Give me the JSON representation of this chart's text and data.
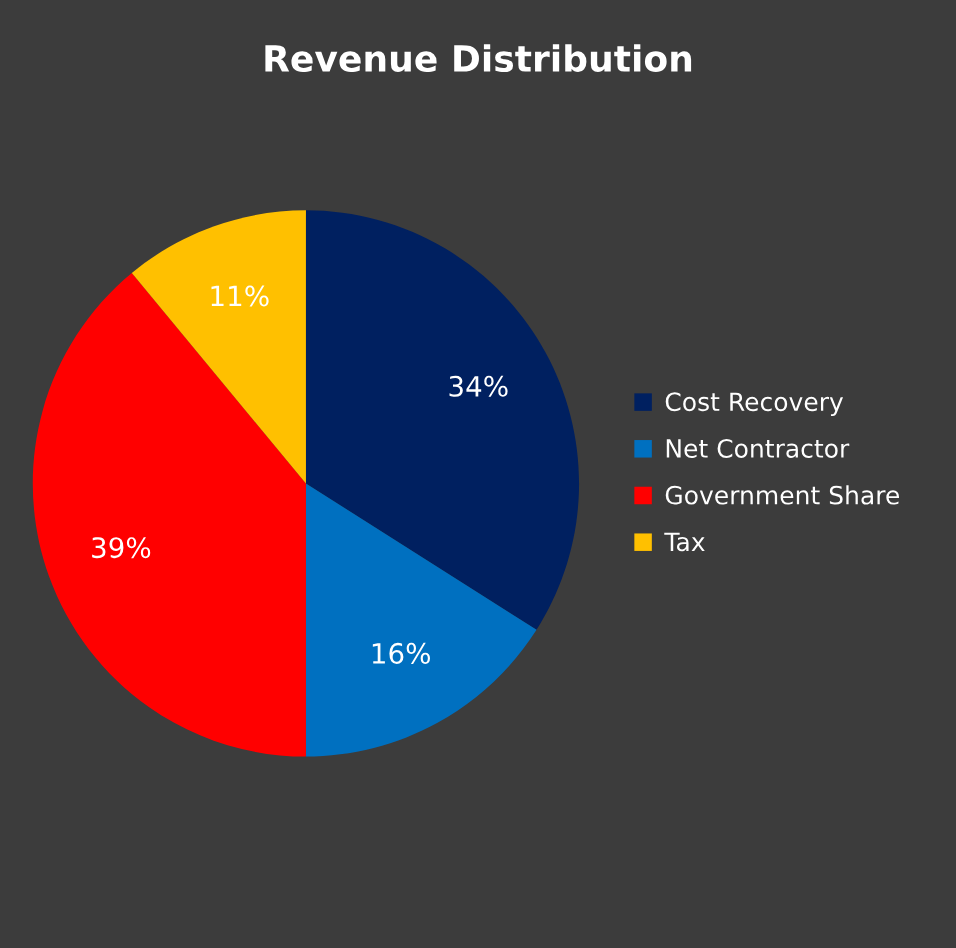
{
  "chart_data": {
    "type": "pie",
    "title": "Revenue Distribution",
    "categories": [
      "Cost Recovery",
      "Net Contractor",
      "Government Share",
      "Tax"
    ],
    "values": [
      34,
      16,
      39,
      11
    ],
    "value_labels": [
      "34%",
      "16%",
      "39%",
      "11%"
    ],
    "colors": [
      "#002060",
      "#0070c0",
      "#ff0000",
      "#ffc000"
    ],
    "legend": "right"
  }
}
